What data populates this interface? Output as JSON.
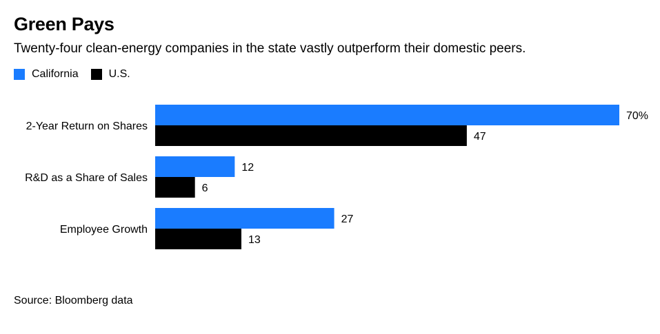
{
  "colors": {
    "california": "#1a7cff",
    "us": "#000000"
  },
  "chart_data": {
    "type": "bar",
    "orientation": "horizontal",
    "title": "Green Pays",
    "subtitle": "Twenty-four clean-energy companies in the state vastly outperform their domestic peers.",
    "categories": [
      "2-Year Return on Shares",
      "R&D as a Share of Sales",
      "Employee Growth"
    ],
    "series": [
      {
        "name": "California",
        "values": [
          70,
          12,
          27
        ],
        "labels": [
          "70%",
          "12",
          "27"
        ]
      },
      {
        "name": "U.S.",
        "values": [
          47,
          6,
          13
        ],
        "labels": [
          "47",
          "6",
          "13"
        ]
      }
    ],
    "xlim": [
      0,
      70
    ],
    "unit": "%",
    "legend_position": "top-left",
    "grid": false
  },
  "source": "Source: Bloomberg data"
}
